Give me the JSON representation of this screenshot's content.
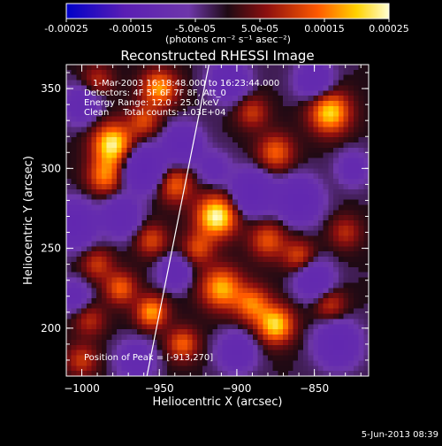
{
  "chart_data": {
    "type": "heatmap",
    "title": "Reconstructed RHESSI Image",
    "xlabel": "Heliocentric X (arcsec)",
    "ylabel": "Heliocentric Y (arcsec)",
    "xlim": [
      -1010,
      -815
    ],
    "ylim": [
      170,
      365
    ],
    "x_ticks": [
      -1000,
      -950,
      -900,
      -850
    ],
    "x_tick_labels": [
      "−1000",
      "−950",
      "−900",
      "−850"
    ],
    "y_ticks": [
      200,
      250,
      300,
      350
    ],
    "y_tick_labels": [
      "200",
      "250",
      "300",
      "350"
    ],
    "colorbar": {
      "range": [
        -0.00025,
        0.00025
      ],
      "ticks": [
        -0.00025,
        -0.00015,
        -5e-05,
        5e-05,
        0.00015,
        0.00025
      ],
      "tick_labels": [
        "-0.00025",
        "-0.00015",
        "-5.0e-05",
        "5.0e-05",
        "0.00015",
        "0.00025"
      ],
      "unit_label": "(photons cm⁻² s⁻¹ asec⁻²)"
    },
    "annotations": [
      "1-Mar-2003 16:18:48.000 to 16:23:44.000",
      "Detectors: 4F 5F 6F 7F 8F, Att_0",
      "Energy Range: 12.0 - 25.0 keV",
      "Clean     Total counts: 1.03E+04"
    ],
    "peak_label": "Position of Peak = [-913,270]",
    "peak": [
      -913,
      270
    ],
    "limb_line": [
      [
        -958,
        170
      ],
      [
        -918,
        365
      ]
    ],
    "sources": [
      {
        "x": -913,
        "y": 270,
        "amp": 1.0,
        "s": 9
      },
      {
        "x": -980,
        "y": 315,
        "amp": 0.95,
        "s": 9
      },
      {
        "x": -985,
        "y": 295,
        "amp": 0.6,
        "s": 8
      },
      {
        "x": -950,
        "y": 350,
        "amp": 0.7,
        "s": 8
      },
      {
        "x": -960,
        "y": 330,
        "amp": 0.45,
        "s": 7
      },
      {
        "x": -840,
        "y": 335,
        "amp": 0.85,
        "s": 9
      },
      {
        "x": -875,
        "y": 310,
        "amp": 0.55,
        "s": 8
      },
      {
        "x": -890,
        "y": 335,
        "amp": 0.4,
        "s": 7
      },
      {
        "x": -940,
        "y": 290,
        "amp": 0.55,
        "s": 8
      },
      {
        "x": -955,
        "y": 255,
        "amp": 0.45,
        "s": 7
      },
      {
        "x": -880,
        "y": 255,
        "amp": 0.5,
        "s": 8
      },
      {
        "x": -860,
        "y": 245,
        "amp": 0.45,
        "s": 7
      },
      {
        "x": -910,
        "y": 225,
        "amp": 0.75,
        "s": 9
      },
      {
        "x": -890,
        "y": 215,
        "amp": 0.6,
        "s": 8
      },
      {
        "x": -875,
        "y": 202,
        "amp": 0.85,
        "s": 8
      },
      {
        "x": -990,
        "y": 240,
        "amp": 0.4,
        "s": 7
      },
      {
        "x": -975,
        "y": 225,
        "amp": 0.55,
        "s": 7
      },
      {
        "x": -955,
        "y": 210,
        "amp": 0.7,
        "s": 7
      },
      {
        "x": -935,
        "y": 190,
        "amp": 0.55,
        "s": 7
      },
      {
        "x": -995,
        "y": 205,
        "amp": 0.35,
        "s": 7
      },
      {
        "x": -925,
        "y": 250,
        "amp": 0.45,
        "s": 7
      },
      {
        "x": -840,
        "y": 215,
        "amp": 0.4,
        "s": 7
      },
      {
        "x": -830,
        "y": 260,
        "amp": 0.35,
        "s": 7
      },
      {
        "x": -1000,
        "y": 180,
        "amp": 0.4,
        "s": 7
      },
      {
        "x": -990,
        "y": 355,
        "amp": 0.35,
        "s": 7
      },
      {
        "x": -960,
        "y": 300,
        "amp": -0.95,
        "s": 9
      },
      {
        "x": -935,
        "y": 315,
        "amp": -0.75,
        "s": 8
      },
      {
        "x": -890,
        "y": 285,
        "amp": -0.8,
        "s": 9
      },
      {
        "x": -860,
        "y": 280,
        "amp": -0.85,
        "s": 9
      },
      {
        "x": -905,
        "y": 355,
        "amp": -0.7,
        "s": 8
      },
      {
        "x": -850,
        "y": 355,
        "amp": -0.6,
        "s": 8
      },
      {
        "x": -1005,
        "y": 265,
        "amp": -0.9,
        "s": 9
      },
      {
        "x": -975,
        "y": 270,
        "amp": -0.7,
        "s": 8
      },
      {
        "x": -1000,
        "y": 340,
        "amp": -0.55,
        "s": 8
      },
      {
        "x": -850,
        "y": 230,
        "amp": -0.65,
        "s": 8
      },
      {
        "x": -835,
        "y": 190,
        "amp": -0.8,
        "s": 9
      },
      {
        "x": -900,
        "y": 185,
        "amp": -0.6,
        "s": 8
      },
      {
        "x": -965,
        "y": 180,
        "amp": -0.55,
        "s": 8
      },
      {
        "x": -940,
        "y": 235,
        "amp": -0.55,
        "s": 7
      },
      {
        "x": -1005,
        "y": 220,
        "amp": -0.45,
        "s": 7
      },
      {
        "x": -825,
        "y": 300,
        "amp": -0.45,
        "s": 7
      },
      {
        "x": -915,
        "y": 300,
        "amp": -0.4,
        "s": 7
      }
    ],
    "grid": false
  },
  "footer": {
    "date": "5-Jun-2013 08:39"
  }
}
